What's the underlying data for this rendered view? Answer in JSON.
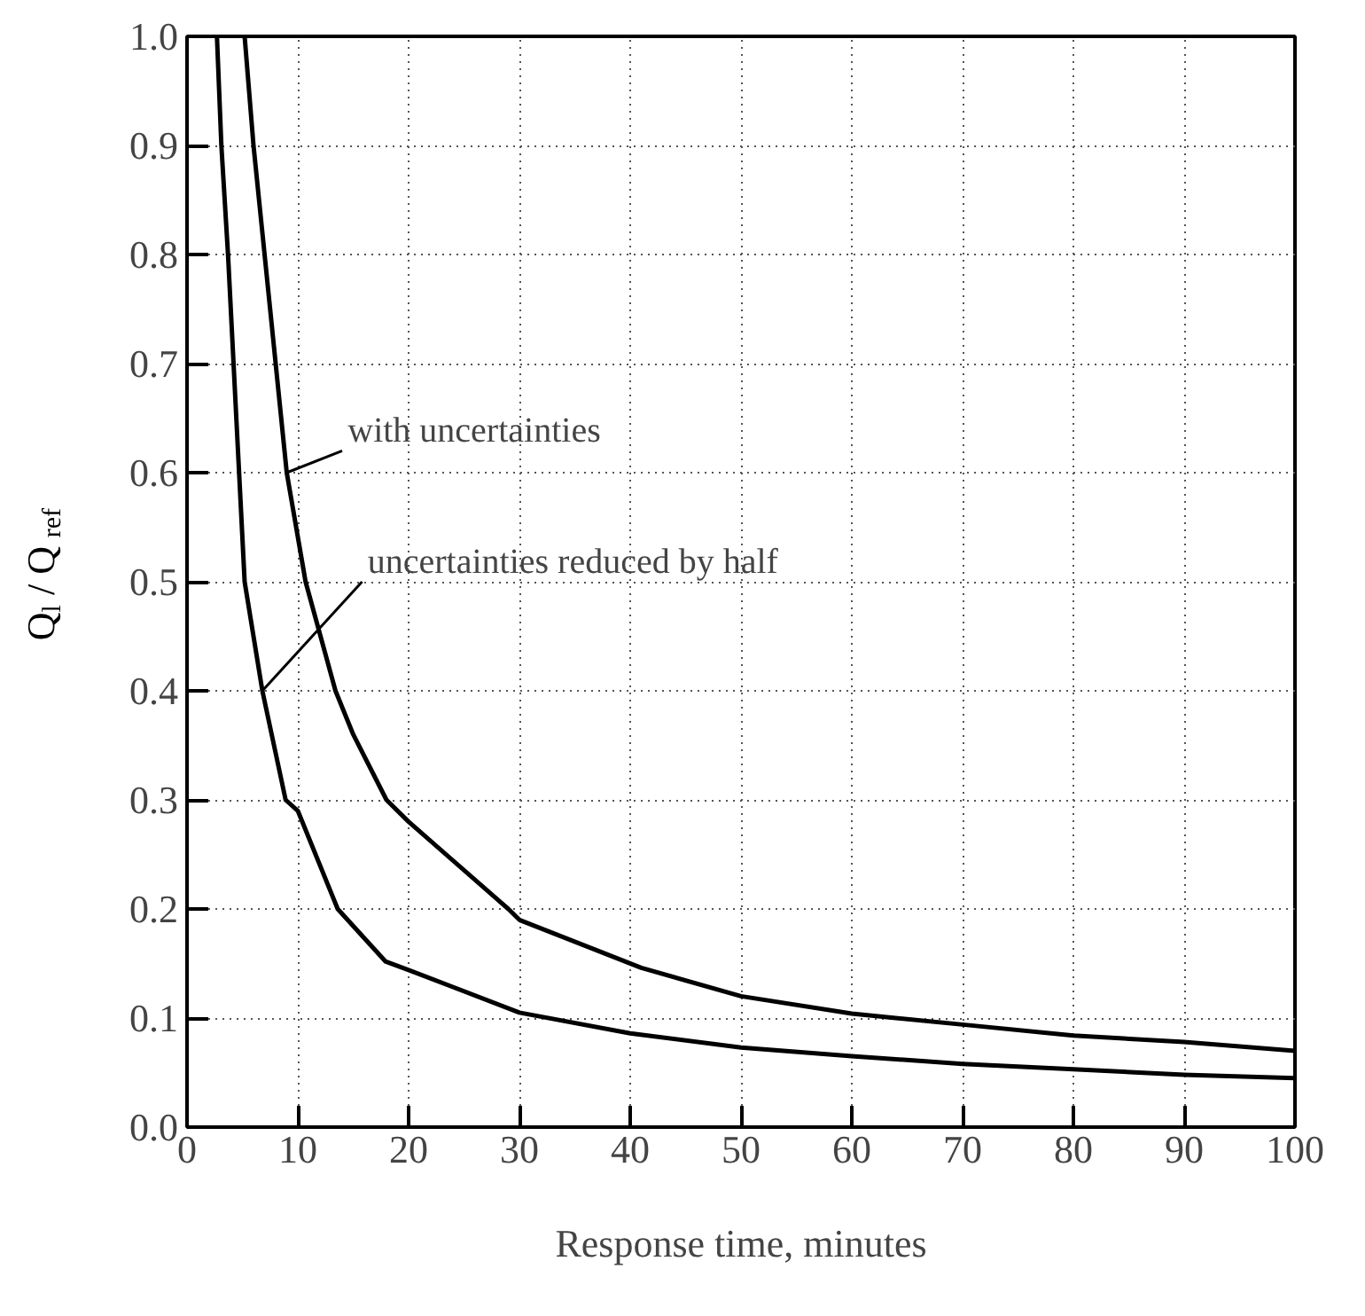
{
  "chart_data": {
    "type": "line",
    "xlabel": "Response time, minutes",
    "ylabel": "Q$_{l}$ / Q$_{ref}$",
    "xlim": [
      0,
      100
    ],
    "ylim": [
      0,
      1
    ],
    "xticks": [
      0,
      10,
      20,
      30,
      40,
      50,
      60,
      70,
      80,
      90,
      100
    ],
    "yticks": [
      {
        "value": 0,
        "label": "0.0"
      },
      0.1,
      0.2,
      0.3,
      0.4,
      0.5,
      0.6,
      0.7,
      0.8,
      0.9,
      {
        "value": 1,
        "label": "1.0"
      }
    ],
    "grid": true,
    "line_style": "solid",
    "marker": "none",
    "series": [
      {
        "color": "#000000",
        "x": [
          5.2,
          6.0,
          7.5,
          9.0,
          10.7,
          13.4,
          15,
          18,
          20,
          29,
          30,
          41,
          50,
          60,
          70,
          80,
          90,
          100
        ],
        "values": [
          1.0,
          0.9,
          0.75,
          0.6,
          0.5,
          0.4,
          0.36,
          0.3,
          0.28,
          0.2,
          0.19,
          0.146,
          0.12,
          0.104,
          0.094,
          0.084,
          0.078,
          0.07
        ]
      },
      {
        "color": "#000000",
        "x": [
          2.7,
          3.1,
          3.7,
          4.7,
          5.2,
          6.8,
          8.9,
          10,
          13.6,
          17.9,
          20,
          30,
          40,
          50,
          60,
          70,
          80,
          90,
          100
        ],
        "values": [
          1.0,
          0.9,
          0.8,
          0.6,
          0.5,
          0.4,
          0.3,
          0.29,
          0.2,
          0.152,
          0.144,
          0.105,
          0.086,
          0.073,
          0.065,
          0.058,
          0.053,
          0.048,
          0.045
        ]
      }
    ],
    "annotations": [
      {
        "text": "with uncertainties",
        "x": 9.0,
        "y": 0.6
      },
      {
        "text": "uncertainties reduced by half",
        "x": 6.8,
        "y": 0.4
      }
    ]
  }
}
